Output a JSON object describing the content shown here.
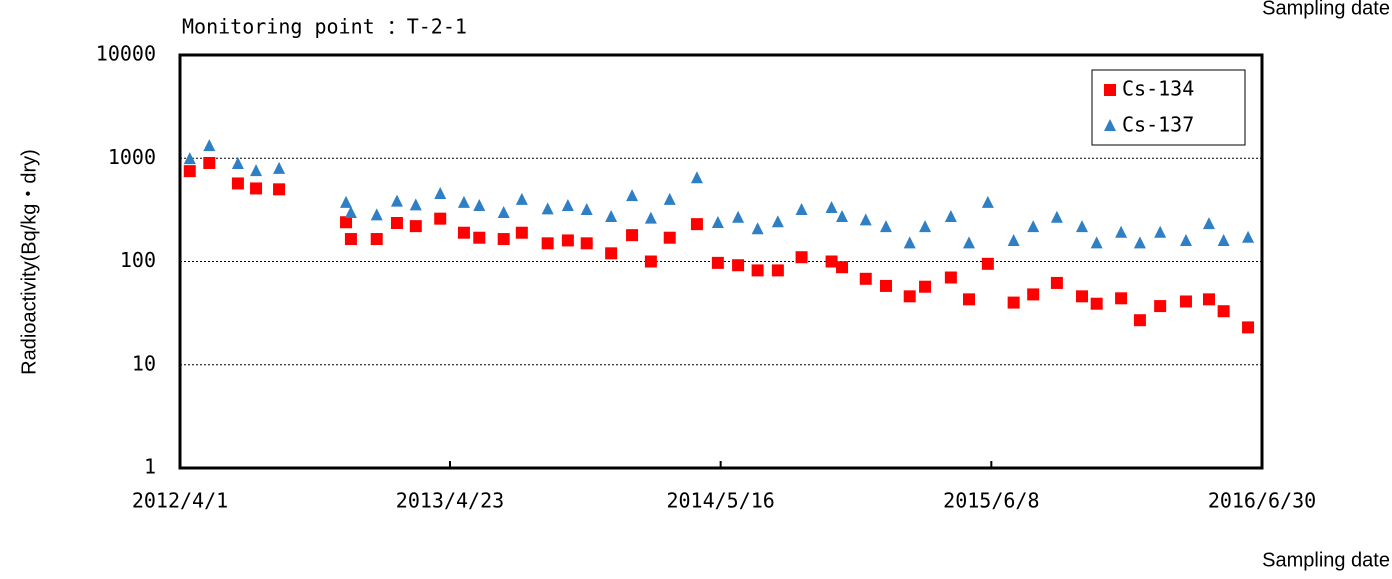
{
  "chart_data": {
    "type": "scatter",
    "title": "Monitoring point ：T-2-1",
    "y_label": "Radioactivity(Bq/kg・dry)",
    "x_label": "Sampling date",
    "x": [
      "2012/4/15",
      "2012/5/13",
      "2012/6/23",
      "2012/7/19",
      "2012/8/21",
      "2012/11/25",
      "2012/12/2",
      "2013/1/8",
      "2013/2/6",
      "2013/3/5",
      "2013/4/9",
      "2013/5/13",
      "2013/6/4",
      "2013/7/9",
      "2013/8/4",
      "2013/9/10",
      "2013/10/9",
      "2013/11/5",
      "2013/12/10",
      "2014/1/9",
      "2014/2/5",
      "2014/3/4",
      "2014/4/12",
      "2014/5/12",
      "2014/6/10",
      "2014/7/8",
      "2014/8/6",
      "2014/9/9",
      "2014/10/22",
      "2014/11/6",
      "2014/12/10",
      "2015/1/8",
      "2015/2/11",
      "2015/3/5",
      "2015/4/11",
      "2015/5/7",
      "2015/6/3",
      "2015/7/10",
      "2015/8/7",
      "2015/9/10",
      "2015/10/16",
      "2015/11/6",
      "2015/12/11",
      "2016/1/7",
      "2016/2/5",
      "2016/3/13",
      "2016/4/15",
      "2016/5/6",
      "2016/6/10"
    ],
    "series": [
      {
        "name": "Cs-134",
        "color": "#ff0000",
        "marker": "square",
        "values": [
          750,
          900,
          570,
          510,
          500,
          240,
          165,
          165,
          236,
          220,
          260,
          190,
          170,
          165,
          190,
          150,
          160,
          150,
          120,
          180,
          100,
          170,
          230,
          97,
          92,
          82,
          82,
          110,
          100,
          88,
          68,
          58,
          46,
          57,
          70,
          43,
          95,
          40,
          48,
          62,
          46,
          39,
          44,
          27,
          37,
          41,
          43,
          33,
          23
        ]
      },
      {
        "name": "Cs-137",
        "color": "#2e7fc4",
        "marker": "triangle",
        "values": [
          980,
          1310,
          880,
          750,
          790,
          370,
          295,
          280,
          380,
          350,
          450,
          370,
          345,
          295,
          395,
          320,
          345,
          315,
          270,
          430,
          260,
          395,
          640,
          236,
          265,
          205,
          240,
          315,
          330,
          270,
          250,
          215,
          150,
          215,
          270,
          150,
          370,
          158,
          215,
          265,
          215,
          150,
          190,
          150,
          190,
          158,
          230,
          158,
          170
        ]
      }
    ],
    "xlim": [
      "2012/4/1",
      "2016/6/30"
    ],
    "xticks": [
      "2012/4/1",
      "2013/4/23",
      "2014/5/16",
      "2015/6/8",
      "2016/6/30"
    ],
    "ylim": [
      1,
      10000
    ],
    "yticks": [
      1,
      10,
      100,
      1000,
      10000
    ],
    "log_y": true,
    "grid": true,
    "legend": "upper right"
  }
}
